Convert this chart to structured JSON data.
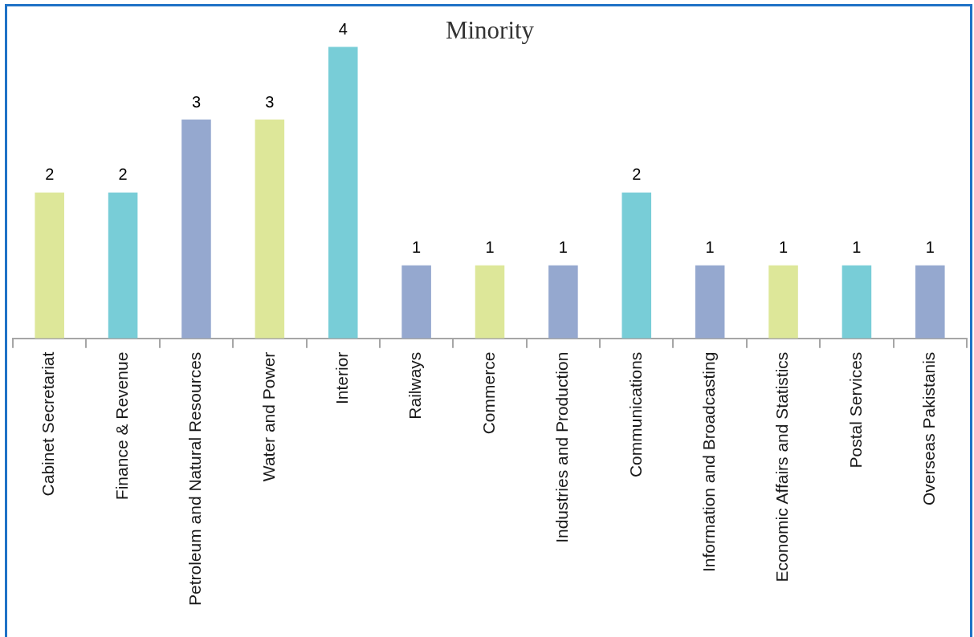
{
  "chart_data": {
    "type": "bar",
    "title": "Minority",
    "categories": [
      "Cabinet Secretariat",
      "Finance & Revenue",
      "Petroleum and Natural Resources",
      "Water and Power",
      "Interior",
      "Railways",
      "Commerce",
      "Industries and Production",
      "Communications",
      "Information and Broadcasting",
      "Economic Affairs and Statistics",
      "Postal Services",
      "Overseas Pakistanis"
    ],
    "values": [
      2,
      2,
      3,
      3,
      4,
      1,
      1,
      1,
      2,
      1,
      1,
      1,
      1
    ],
    "colors": [
      "#dde799",
      "#78cdd7",
      "#95a8cf",
      "#dde799",
      "#78cdd7",
      "#95a8cf",
      "#dde799",
      "#95a8cf",
      "#78cdd7",
      "#95a8cf",
      "#dde799",
      "#78cdd7",
      "#95a8cf"
    ],
    "data_labels": true
  }
}
